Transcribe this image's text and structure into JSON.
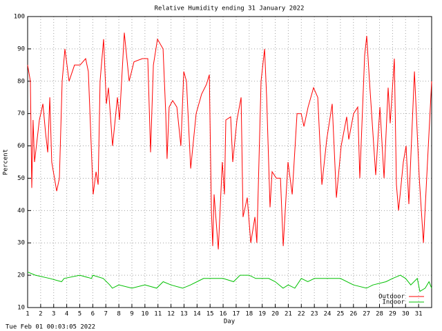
{
  "chart_data": {
    "type": "line",
    "title": "Relative Humidity ending 31 January 2022",
    "x_label": "Day",
    "y_label": "Percent",
    "footer": "Tue Feb 01 00:03:05 2022",
    "xlim": [
      1,
      32
    ],
    "ylim": [
      10,
      100
    ],
    "xticks": [
      1,
      2,
      3,
      4,
      5,
      6,
      7,
      8,
      9,
      10,
      11,
      12,
      13,
      14,
      15,
      16,
      17,
      18,
      19,
      20,
      21,
      22,
      23,
      24,
      25,
      26,
      27,
      28,
      29,
      30,
      31
    ],
    "yticks": [
      10,
      20,
      30,
      40,
      50,
      60,
      70,
      80,
      90,
      100
    ],
    "grid": true,
    "legend": "lower right",
    "series": [
      {
        "name": "Outdoor",
        "color": "#ff0000",
        "x": [
          1.0,
          1.21,
          1.32,
          1.42,
          1.53,
          1.9,
          2.17,
          2.38,
          2.54,
          2.7,
          2.85,
          3.23,
          3.44,
          3.65,
          3.86,
          4.18,
          4.6,
          5.03,
          5.45,
          5.66,
          5.88,
          6.03,
          6.25,
          6.41,
          6.56,
          6.83,
          7.04,
          7.2,
          7.52,
          7.89,
          8.05,
          8.42,
          8.79,
          9.16,
          9.8,
          10.22,
          10.43,
          10.65,
          10.96,
          11.39,
          11.6,
          11.7,
          11.86,
          12.13,
          12.45,
          12.76,
          12.98,
          13.19,
          13.51,
          13.93,
          14.35,
          14.72,
          14.94,
          15.1,
          15.2,
          15.31,
          15.63,
          15.94,
          16.1,
          16.21,
          16.58,
          16.74,
          17.06,
          17.38,
          17.53,
          17.85,
          18.12,
          18.44,
          18.59,
          18.91,
          19.18,
          19.34,
          19.6,
          19.76,
          20.08,
          20.4,
          20.61,
          20.98,
          21.3,
          21.67,
          21.99,
          22.2,
          22.52,
          22.94,
          23.26,
          23.58,
          23.95,
          24.37,
          24.69,
          25.06,
          25.48,
          25.64,
          26.01,
          26.33,
          26.49,
          26.86,
          27.02,
          27.23,
          27.71,
          28.03,
          28.35,
          28.66,
          28.82,
          29.14,
          29.3,
          29.46,
          29.83,
          30.04,
          30.25,
          30.68,
          31.05,
          31.37,
          31.68,
          32.0
        ],
        "values": [
          85,
          80,
          47,
          68,
          55,
          68,
          73,
          64,
          58,
          75,
          55,
          46,
          50,
          80,
          90,
          80,
          85,
          85,
          87,
          83,
          60,
          45,
          52,
          48,
          80,
          93,
          73,
          78,
          60,
          75,
          68,
          95,
          80,
          86,
          87,
          87,
          58,
          85,
          93,
          90,
          70,
          56,
          72,
          74,
          72,
          60,
          83,
          80,
          53,
          70,
          76,
          79,
          82,
          40,
          29,
          45,
          28,
          55,
          45,
          68,
          69,
          55,
          68,
          75,
          38,
          44,
          30,
          38,
          30,
          80,
          90,
          75,
          41,
          52,
          50,
          50,
          29,
          55,
          45,
          70,
          70,
          66,
          72,
          78,
          75,
          48,
          62,
          73,
          44,
          60,
          69,
          62,
          70,
          72,
          50,
          88,
          94,
          80,
          51,
          72,
          50,
          78,
          67,
          87,
          48,
          40,
          55,
          60,
          42,
          83,
          50,
          30,
          55,
          80
        ]
      },
      {
        "name": "Indoor",
        "color": "#00c000",
        "x": [
          1.0,
          1.6,
          2.7,
          3.6,
          3.8,
          5.0,
          5.9,
          6.0,
          6.8,
          7.3,
          7.5,
          8.0,
          9.0,
          10.0,
          10.9,
          11.4,
          12.0,
          12.9,
          13.5,
          14.0,
          14.5,
          16.0,
          16.8,
          17.3,
          18.0,
          18.5,
          19.5,
          20.0,
          20.6,
          21.0,
          21.5,
          22.0,
          22.5,
          23.0,
          25.0,
          26.0,
          27.0,
          27.5,
          28.5,
          29.0,
          29.6,
          30.0,
          30.4,
          30.9,
          31.1,
          31.5,
          31.8,
          32.0
        ],
        "values": [
          21,
          20,
          19,
          18,
          19,
          20,
          19,
          20,
          19,
          17,
          16,
          17,
          16,
          17,
          16,
          18,
          17,
          16,
          17,
          18,
          19,
          19,
          18,
          20,
          20,
          19,
          19,
          18,
          16,
          17,
          16,
          19,
          18,
          19,
          19,
          17,
          16,
          17,
          18,
          19,
          20,
          19,
          17,
          19,
          15,
          16,
          18,
          16
        ]
      }
    ]
  }
}
